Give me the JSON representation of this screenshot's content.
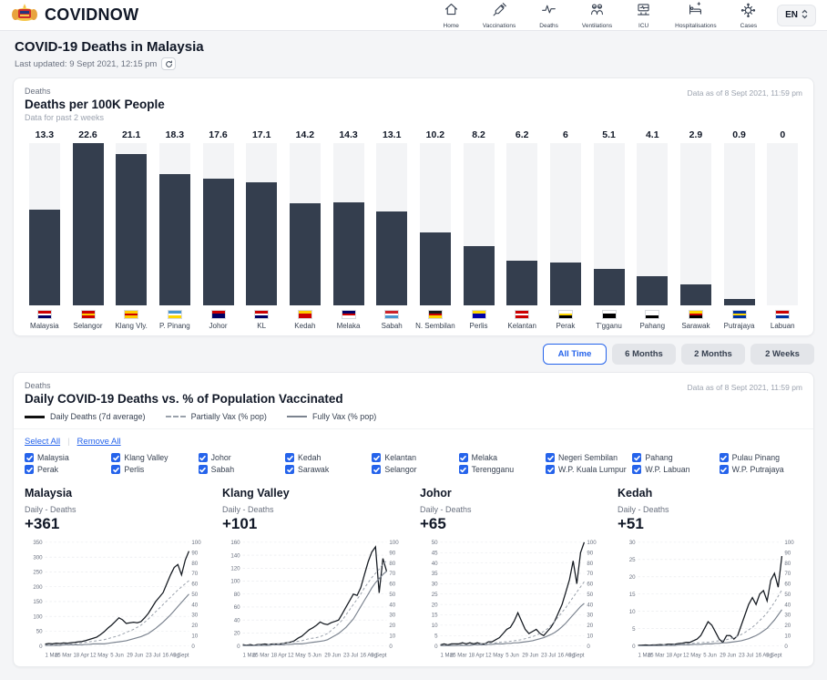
{
  "header": {
    "brand": "COVIDNOW",
    "language": "EN",
    "nav": [
      {
        "label": "Home",
        "icon": "home-icon"
      },
      {
        "label": "Vaccinations",
        "icon": "syringe-icon"
      },
      {
        "label": "Deaths",
        "icon": "pulse-icon"
      },
      {
        "label": "Ventilations",
        "icon": "ventilator-icon"
      },
      {
        "label": "ICU",
        "icon": "icu-icon"
      },
      {
        "label": "Hospitalisations",
        "icon": "hospital-bed-icon"
      },
      {
        "label": "Cases",
        "icon": "virus-icon"
      }
    ]
  },
  "page": {
    "title": "COVID-19 Deaths in Malaysia",
    "last_updated": "Last updated: 9 Sept 2021, 12:15 pm"
  },
  "bar_section": {
    "eyebrow": "Deaths",
    "title": "Deaths per 100K People",
    "subtitle": "Data for past 2 weeks",
    "data_as_of": "Data as of 8 Sept 2021, 11:59 pm"
  },
  "time_ranges": [
    {
      "label": "All Time",
      "active": true
    },
    {
      "label": "6 Months",
      "active": false
    },
    {
      "label": "2 Months",
      "active": false
    },
    {
      "label": "2 Weeks",
      "active": false
    }
  ],
  "vax_section": {
    "eyebrow": "Deaths",
    "title": "Daily COVID-19 Deaths vs. % of Population Vaccinated",
    "data_as_of": "Data as of 8 Sept 2021, 11:59 pm",
    "legend": [
      {
        "label": "Daily Deaths (7d average)",
        "style": "solid-black"
      },
      {
        "label": "Partially Vax (% pop)",
        "style": "dashed-gray"
      },
      {
        "label": "Fully Vax (% pop)",
        "style": "solid-gray"
      }
    ],
    "select_all": "Select All",
    "remove_all": "Remove All",
    "states": [
      "Malaysia",
      "Klang Valley",
      "Johor",
      "Kedah",
      "Kelantan",
      "Melaka",
      "Negeri Sembilan",
      "Pahang",
      "Pulau Pinang",
      "Perak",
      "Perlis",
      "Sabah",
      "Sarawak",
      "Selangor",
      "Terengganu",
      "W.P. Kuala Lumpur",
      "W.P. Labuan",
      "W.P. Putrajaya"
    ],
    "all_checked": true
  },
  "colors": {
    "accent_blue": "#2563eb",
    "bar_fill": "#343e4e",
    "bar_track": "#f3f4f6",
    "deaths_line": "#151a21",
    "partial_vax_line": "#9aa1ab",
    "fully_vax_line": "#7b838f"
  },
  "chart_data": [
    {
      "type": "bar",
      "title": "Deaths per 100K People",
      "categories": [
        "Malaysia",
        "Selangor",
        "Klang Vly.",
        "P. Pinang",
        "Johor",
        "KL",
        "Kedah",
        "Melaka",
        "Sabah",
        "N. Sembilan",
        "Perlis",
        "Kelantan",
        "Perak",
        "T'gganu",
        "Pahang",
        "Sarawak",
        "Putrajaya",
        "Labuan"
      ],
      "values": [
        13.3,
        22.6,
        21.1,
        18.3,
        17.6,
        17.1,
        14.2,
        14.3,
        13.1,
        10.2,
        8.2,
        6.2,
        6,
        5.1,
        4.1,
        2.9,
        0.9,
        0
      ],
      "value_labels": [
        "13.3",
        "22.6",
        "21.1",
        "18.3",
        "17.6",
        "17.1",
        "14.2",
        "14.3",
        "13.1",
        "10.2",
        "8.2",
        "6.2",
        "6",
        "5.1",
        "4.1",
        "2.9",
        "0.9",
        "0"
      ],
      "ylim": [
        0,
        22.6
      ],
      "flag_colors": [
        [
          "#cc0001",
          "#ffffff",
          "#010066"
        ],
        [
          "#cc0001",
          "#ffcc00",
          "#cc0001"
        ],
        [
          "#ffcc00",
          "#cc0001",
          "#ffcc00"
        ],
        [
          "#4997d0",
          "#ffffff",
          "#ffd700"
        ],
        [
          "#cc0001",
          "#000066",
          "#000066"
        ],
        [
          "#cc0001",
          "#ffffff",
          "#000066"
        ],
        [
          "#ffcc00",
          "#cc0001",
          "#cc0001"
        ],
        [
          "#000066",
          "#cc0001",
          "#ffffff"
        ],
        [
          "#cc2229",
          "#ffffff",
          "#4997d0"
        ],
        [
          "#1a1a1a",
          "#cc0001",
          "#ffd700"
        ],
        [
          "#ffd700",
          "#0000aa",
          "#0000aa"
        ],
        [
          "#cc0001",
          "#ffffff",
          "#cc0001"
        ],
        [
          "#ffffff",
          "#ffd700",
          "#000000"
        ],
        [
          "#ffffff",
          "#000000",
          "#000000"
        ],
        [
          "#ffffff",
          "#ffffff",
          "#000000"
        ],
        [
          "#ffd700",
          "#cc0001",
          "#000000"
        ],
        [
          "#0033a0",
          "#ffd700",
          "#0033a0"
        ],
        [
          "#cc0001",
          "#ffffff",
          "#0033a0"
        ]
      ]
    },
    {
      "type": "line",
      "title": "Malaysia",
      "subtitle": "Daily - Deaths",
      "delta": "+361",
      "ylim_left": [
        0,
        350
      ],
      "yticks_left": [
        0,
        50,
        100,
        150,
        200,
        250,
        300,
        350
      ],
      "ylim_right": [
        0,
        100
      ],
      "yticks_right": [
        0,
        10,
        20,
        30,
        40,
        50,
        60,
        70,
        80,
        90,
        100
      ],
      "xticklabels": [
        "1 Mar",
        "25 Mar",
        "18 Apr",
        "12 May",
        "5 Jun",
        "29 Jun",
        "23 Jul",
        "16 Aug",
        "9 Sept"
      ],
      "series": [
        {
          "name": "Daily Deaths (7d average)",
          "axis": "left",
          "style": "solid-black",
          "values": [
            6,
            8,
            7,
            9,
            8,
            10,
            9,
            11,
            12,
            14,
            15,
            18,
            22,
            26,
            30,
            38,
            48,
            60,
            70,
            82,
            95,
            88,
            76,
            78,
            80,
            78,
            82,
            95,
            110,
            130,
            150,
            165,
            180,
            210,
            240,
            265,
            275,
            240,
            290,
            320
          ]
        },
        {
          "name": "Partially Vax (% pop)",
          "axis": "right",
          "style": "dashed-gray",
          "values": [
            1,
            1,
            1,
            1,
            1,
            1.5,
            2,
            2,
            2,
            2.5,
            3,
            3.5,
            4,
            4.5,
            5,
            5.5,
            6,
            7,
            8,
            9,
            10,
            11.5,
            13,
            14.5,
            16,
            18,
            20,
            23,
            26,
            29.5,
            33,
            36.5,
            40,
            43.5,
            47,
            50.5,
            54,
            57,
            60,
            63
          ]
        },
        {
          "name": "Fully Vax (% pop)",
          "axis": "right",
          "style": "solid-gray",
          "values": [
            0.5,
            0.5,
            0.5,
            0.5,
            0.5,
            1,
            1,
            1,
            1,
            1,
            1,
            1.5,
            1.5,
            2,
            2,
            2,
            2,
            2.5,
            3,
            3.5,
            4,
            4.5,
            5,
            6,
            7,
            8,
            9,
            10.5,
            12,
            14.5,
            17,
            20,
            23,
            26.5,
            30,
            34,
            38,
            42,
            46,
            50
          ]
        }
      ]
    },
    {
      "type": "line",
      "title": "Klang Valley",
      "subtitle": "Daily - Deaths",
      "delta": "+101",
      "ylim_left": [
        0,
        160
      ],
      "yticks_left": [
        0,
        20,
        40,
        60,
        80,
        100,
        120,
        140,
        160
      ],
      "ylim_right": [
        0,
        100
      ],
      "yticks_right": [
        0,
        10,
        20,
        30,
        40,
        50,
        60,
        70,
        80,
        90,
        100
      ],
      "xticklabels": [
        "1 Mar",
        "25 Mar",
        "18 Apr",
        "12 May",
        "5 Jun",
        "29 Jun",
        "23 Jul",
        "16 Aug",
        "9 Sept"
      ],
      "series": [
        {
          "name": "Daily Deaths (7d average)",
          "axis": "left",
          "style": "solid-black",
          "values": [
            2,
            1,
            2,
            1,
            2,
            2,
            3,
            2,
            3,
            3,
            3,
            4,
            5,
            6,
            8,
            12,
            15,
            20,
            25,
            28,
            32,
            37,
            34,
            33,
            36,
            38,
            40,
            50,
            60,
            70,
            80,
            78,
            90,
            110,
            130,
            145,
            153,
            82,
            135,
            115
          ]
        },
        {
          "name": "Partially Vax (% pop)",
          "axis": "right",
          "style": "dashed-gray",
          "values": [
            0.5,
            0.5,
            0.5,
            0.5,
            1,
            1,
            1,
            1.5,
            1.5,
            2,
            2,
            2.5,
            3,
            3.5,
            4,
            4.5,
            5,
            6,
            7,
            7.5,
            8,
            9,
            10.5,
            12,
            15,
            18,
            21.5,
            25,
            30,
            35,
            40,
            45,
            50,
            56,
            61,
            66,
            70,
            74,
            79,
            82
          ]
        },
        {
          "name": "Fully Vax (% pop)",
          "axis": "right",
          "style": "solid-gray",
          "values": [
            0.3,
            0.3,
            0.3,
            0.3,
            0.5,
            0.5,
            0.5,
            0.5,
            1,
            1,
            1,
            1,
            1.5,
            1.5,
            2,
            2,
            2,
            2.5,
            3,
            3.5,
            4,
            4.5,
            5,
            6,
            8,
            10,
            12,
            15,
            18,
            22,
            26,
            32,
            38,
            44,
            50,
            56,
            61,
            65,
            69,
            72
          ]
        }
      ]
    },
    {
      "type": "line",
      "title": "Johor",
      "subtitle": "Daily - Deaths",
      "delta": "+65",
      "ylim_left": [
        0,
        50
      ],
      "yticks_left": [
        0,
        5,
        10,
        15,
        20,
        25,
        30,
        35,
        40,
        45,
        50
      ],
      "ylim_right": [
        0,
        100
      ],
      "yticks_right": [
        0,
        10,
        20,
        30,
        40,
        50,
        60,
        70,
        80,
        90,
        100
      ],
      "xticklabels": [
        "1 Mar",
        "25 Mar",
        "18 Apr",
        "12 May",
        "5 Jun",
        "29 Jun",
        "23 Jul",
        "16 Aug",
        "9 Sept"
      ],
      "series": [
        {
          "name": "Daily Deaths (7d average)",
          "axis": "left",
          "style": "solid-black",
          "values": [
            0.5,
            1,
            0.5,
            1,
            1,
            1,
            1.5,
            1,
            1.5,
            1,
            1.5,
            1,
            1,
            2,
            2,
            3,
            4,
            6,
            8,
            9,
            12,
            16,
            12,
            8,
            6,
            7,
            8,
            6,
            5,
            7,
            9,
            12,
            16,
            20,
            26,
            32,
            41,
            30,
            45,
            50
          ]
        },
        {
          "name": "Partially Vax (% pop)",
          "axis": "right",
          "style": "dashed-gray",
          "values": [
            0.5,
            0.5,
            0.5,
            0.5,
            0.5,
            1,
            1,
            1,
            1,
            1.5,
            1.5,
            2,
            2,
            2.5,
            3,
            3,
            3.5,
            4,
            4,
            4.5,
            5,
            5.5,
            6,
            7,
            8,
            9,
            10.5,
            12,
            14,
            16.5,
            20,
            24,
            28,
            32.5,
            37,
            42,
            47,
            52,
            57,
            62
          ]
        },
        {
          "name": "Fully Vax (% pop)",
          "axis": "right",
          "style": "solid-gray",
          "values": [
            0.3,
            0.3,
            0.3,
            0.3,
            0.3,
            0.5,
            0.5,
            0.5,
            0.5,
            1,
            1,
            1,
            1,
            1.5,
            1.5,
            2,
            2,
            2,
            2.5,
            2.5,
            3,
            3,
            3.5,
            4,
            4.5,
            5,
            6,
            7,
            8,
            9.5,
            11,
            13,
            15.5,
            18.5,
            22,
            26,
            30,
            34,
            38,
            41
          ]
        }
      ]
    },
    {
      "type": "line",
      "title": "Kedah",
      "subtitle": "Daily - Deaths",
      "delta": "+51",
      "ylim_left": [
        0,
        30
      ],
      "yticks_left": [
        0,
        5,
        10,
        15,
        20,
        25,
        30
      ],
      "ylim_right": [
        0,
        100
      ],
      "yticks_right": [
        0,
        10,
        20,
        30,
        40,
        50,
        60,
        70,
        80,
        90,
        100
      ],
      "xticklabels": [
        "1 Mar",
        "25 Mar",
        "18 Apr",
        "12 May",
        "5 Jun",
        "29 Jun",
        "23 Jul",
        "16 Aug",
        "9 Sept"
      ],
      "series": [
        {
          "name": "Daily Deaths (7d average)",
          "axis": "left",
          "style": "solid-black",
          "values": [
            0.2,
            0.2,
            0.3,
            0.2,
            0.3,
            0.3,
            0.4,
            0.3,
            0.5,
            0.5,
            0.5,
            0.7,
            0.8,
            1,
            1,
            1.5,
            2,
            3,
            5,
            7,
            6,
            4,
            2,
            1,
            3,
            3,
            2,
            3,
            6,
            9,
            12,
            14,
            12,
            15,
            16,
            13,
            19,
            21,
            17,
            26
          ]
        },
        {
          "name": "Partially Vax (% pop)",
          "axis": "right",
          "style": "dashed-gray",
          "values": [
            0.3,
            0.3,
            0.3,
            0.3,
            0.5,
            0.5,
            0.5,
            1,
            1,
            1,
            1.5,
            1.5,
            2,
            2,
            2.5,
            2.5,
            3,
            3,
            3.5,
            3.5,
            4,
            4.5,
            5,
            5.5,
            6,
            7,
            8,
            9.5,
            11,
            13,
            15.5,
            18,
            21,
            24.5,
            28,
            32,
            37,
            42,
            48,
            54
          ]
        },
        {
          "name": "Fully Vax (% pop)",
          "axis": "right",
          "style": "solid-gray",
          "values": [
            0.2,
            0.2,
            0.2,
            0.2,
            0.3,
            0.3,
            0.3,
            0.5,
            0.5,
            0.5,
            0.5,
            1,
            1,
            1,
            1,
            1.5,
            1.5,
            1.5,
            2,
            2,
            2,
            2.5,
            2.5,
            3,
            3,
            3.5,
            4,
            4.5,
            5,
            6,
            7,
            8.5,
            10,
            12,
            14.5,
            17,
            21,
            25,
            30,
            35
          ]
        }
      ]
    }
  ]
}
